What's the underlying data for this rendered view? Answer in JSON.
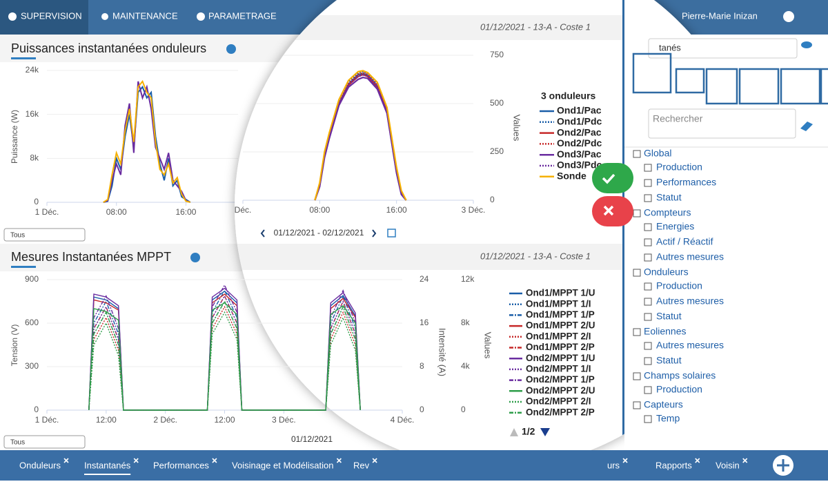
{
  "nav": {
    "supervision": "SUPERVISION",
    "maintenance": "MAINTENANCE",
    "parametrage": "PARAMETRAGE",
    "user": "Pierre-Marie Inizan"
  },
  "panel1": {
    "title": "Puissances instantanées onduleurs",
    "filter": "Tous"
  },
  "panel2": {
    "title": "Mesures Instantanées MPPT",
    "filter": "Tous"
  },
  "zoom": {
    "header1": "01/12/2021 - 13-A - Coste 1",
    "range1": "01/12/2021 - 02/12/2021",
    "header2": "01/12/2021 - 13-A - Coste 1",
    "range2": "01/12/2021",
    "pager": "1/2"
  },
  "chart_data": [
    {
      "type": "line",
      "y_label": "Puissance (W)",
      "x": [
        6.5,
        7,
        7.5,
        8,
        8.5,
        9,
        9.5,
        10,
        10.5,
        11,
        11.5,
        12,
        12.5,
        13,
        13.5,
        14,
        14.5,
        15,
        15.5,
        16,
        16.5
      ],
      "xlim": [
        0,
        22
      ],
      "xticks": [
        {
          "value": 0,
          "label": "1 Déc."
        },
        {
          "value": 8,
          "label": "08:00"
        },
        {
          "value": 16,
          "label": "16:00"
        }
      ],
      "ylim": [
        0,
        24000
      ],
      "yticks": [
        0,
        {
          "value": 8000,
          "label": "8k"
        },
        {
          "value": 16000,
          "label": "16k"
        },
        {
          "value": 24000,
          "label": "24k"
        }
      ],
      "grid": true,
      "series": [
        {
          "color": "#1a5ea8",
          "values": [
            0,
            200,
            3000,
            8000,
            6000,
            12000,
            16000,
            10000,
            20000,
            21000,
            19000,
            20000,
            12000,
            7000,
            4000,
            8000,
            3000,
            4000,
            1000,
            500,
            0
          ]
        },
        {
          "color": "#6a2ca0",
          "values": [
            0,
            300,
            4000,
            7000,
            5000,
            14000,
            18000,
            9000,
            22000,
            19000,
            21000,
            17000,
            10000,
            8000,
            6000,
            9000,
            4000,
            3000,
            2000,
            300,
            0
          ]
        },
        {
          "color": "#f5b000",
          "values": [
            0,
            500,
            5000,
            9000,
            7000,
            13000,
            17000,
            11000,
            21000,
            22000,
            20000,
            19000,
            11000,
            6000,
            5000,
            7000,
            3500,
            4500,
            1500,
            200,
            0
          ]
        }
      ]
    },
    {
      "type": "line",
      "y_label": "Values",
      "legend_title": "3 onduleurs",
      "x": [
        7.5,
        8,
        8.5,
        9,
        10,
        11,
        12,
        12.5,
        13,
        14,
        15,
        16,
        16.5,
        17
      ],
      "xlim": [
        0,
        24
      ],
      "xticks": [
        {
          "value": 0,
          "label": "Déc."
        },
        {
          "value": 8,
          "label": "08:00"
        },
        {
          "value": 16,
          "label": "16:00"
        },
        {
          "value": 24,
          "label": "3 Déc."
        }
      ],
      "ylim": [
        0,
        750
      ],
      "yticks": [
        0,
        250,
        500,
        750
      ],
      "grid": true,
      "series": [
        {
          "name": "Ond1/Pac",
          "color": "#1a5ea8",
          "dash": "solid",
          "values": [
            0,
            80,
            230,
            330,
            500,
            600,
            650,
            655,
            645,
            590,
            460,
            150,
            40,
            0
          ]
        },
        {
          "name": "Ond1/Pdc",
          "color": "#1a5ea8",
          "dash": "dot",
          "values": [
            0,
            85,
            240,
            340,
            510,
            610,
            660,
            665,
            655,
            600,
            470,
            160,
            45,
            0
          ]
        },
        {
          "name": "Ond2/Pac",
          "color": "#c62828",
          "dash": "solid",
          "values": [
            0,
            75,
            225,
            325,
            495,
            595,
            640,
            650,
            640,
            585,
            455,
            145,
            35,
            0
          ]
        },
        {
          "name": "Ond2/Pdc",
          "color": "#c62828",
          "dash": "dot",
          "values": [
            0,
            80,
            235,
            335,
            505,
            605,
            652,
            660,
            650,
            595,
            465,
            155,
            40,
            0
          ]
        },
        {
          "name": "Ond3/Pac",
          "color": "#6a2ca0",
          "dash": "solid",
          "values": [
            0,
            70,
            220,
            320,
            490,
            585,
            625,
            635,
            630,
            575,
            450,
            140,
            30,
            0
          ]
        },
        {
          "name": "Ond3/Pdc",
          "color": "#6a2ca0",
          "dash": "dot",
          "values": [
            0,
            78,
            232,
            330,
            500,
            598,
            640,
            648,
            642,
            588,
            462,
            150,
            38,
            0
          ]
        },
        {
          "name": "Sonde",
          "color": "#f5b000",
          "dash": "solid",
          "values": [
            0,
            90,
            250,
            350,
            520,
            620,
            665,
            670,
            660,
            610,
            480,
            170,
            50,
            0
          ]
        }
      ]
    },
    {
      "type": "line",
      "y_label": "Tension (V)",
      "y2_label": "Intensité (A)",
      "y3_label": "Values",
      "x": [
        8.5,
        9.5,
        12,
        14.5,
        15.5,
        32.5,
        33.5,
        36,
        38.5,
        39.5,
        56.5,
        57.5,
        60,
        62.5,
        63.5
      ],
      "xlim": [
        0,
        72
      ],
      "xticks": [
        {
          "value": 0,
          "label": "1 Déc."
        },
        {
          "value": 12,
          "label": "12:00"
        },
        {
          "value": 24,
          "label": "2 Déc."
        },
        {
          "value": 36,
          "label": "12:00"
        },
        {
          "value": 48,
          "label": "3 Déc."
        },
        {
          "value": 72,
          "label": "4 Déc."
        }
      ],
      "ylim": [
        0,
        900
      ],
      "yticks": [
        0,
        300,
        600,
        900
      ],
      "y2lim": [
        0,
        24
      ],
      "y2ticks": [
        0,
        8,
        16,
        24
      ],
      "y3lim": [
        0,
        12000
      ],
      "y3ticks": [
        0,
        {
          "value": 4000,
          "label": "4k"
        },
        {
          "value": 8000,
          "label": "8k"
        },
        {
          "value": 12000,
          "label": "12k"
        }
      ],
      "grid": true,
      "series": [
        {
          "name": "Ond1/MPPT 1/U",
          "color": "#1a5ea8",
          "dash": "solid",
          "axis": "y",
          "values": [
            0,
            780,
            760,
            700,
            0,
            0,
            760,
            820,
            740,
            0,
            0,
            720,
            790,
            650,
            0
          ]
        },
        {
          "name": "Ond1/MPPT 1/I",
          "color": "#1a5ea8",
          "dash": "dot",
          "axis": "y2",
          "values": [
            0,
            14,
            18,
            12,
            0,
            0,
            16,
            20,
            15,
            0,
            0,
            14,
            19,
            13,
            0
          ]
        },
        {
          "name": "Ond1/MPPT 1/P",
          "color": "#1a5ea8",
          "dash": "dashdot",
          "axis": "y3",
          "values": [
            0,
            8000,
            10000,
            7000,
            0,
            0,
            9000,
            11000,
            8500,
            0,
            0,
            8000,
            10500,
            7500,
            0
          ]
        },
        {
          "name": "Ond1/MPPT 2/U",
          "color": "#c62828",
          "dash": "solid",
          "axis": "y",
          "values": [
            0,
            760,
            740,
            690,
            0,
            0,
            740,
            800,
            720,
            0,
            0,
            700,
            770,
            640,
            0
          ]
        },
        {
          "name": "Ond1/MPPT 2/I",
          "color": "#c62828",
          "dash": "dot",
          "axis": "y2",
          "values": [
            0,
            13,
            17,
            11,
            0,
            0,
            15,
            19,
            14,
            0,
            0,
            13,
            18,
            12,
            0
          ]
        },
        {
          "name": "Ond1/MPPT 2/P",
          "color": "#c62828",
          "dash": "dashdot",
          "axis": "y3",
          "values": [
            0,
            7500,
            9500,
            6500,
            0,
            0,
            8500,
            10500,
            8000,
            0,
            0,
            7500,
            10000,
            7000,
            0
          ]
        },
        {
          "name": "Ond2/MPPT 1/U",
          "color": "#6a2ca0",
          "dash": "solid",
          "axis": "y",
          "values": [
            0,
            800,
            780,
            720,
            0,
            0,
            780,
            840,
            760,
            0,
            0,
            740,
            810,
            670,
            0
          ]
        },
        {
          "name": "Ond2/MPPT 1/I",
          "color": "#6a2ca0",
          "dash": "dot",
          "axis": "y2",
          "values": [
            0,
            15,
            19,
            13,
            0,
            0,
            17,
            21,
            16,
            0,
            0,
            15,
            20,
            14,
            0
          ]
        },
        {
          "name": "Ond2/MPPT 1/P",
          "color": "#6a2ca0",
          "dash": "dashdot",
          "axis": "y3",
          "values": [
            0,
            8500,
            10500,
            7500,
            0,
            0,
            9500,
            11500,
            9000,
            0,
            0,
            8500,
            11000,
            8000,
            0
          ]
        },
        {
          "name": "Ond2/MPPT 2/U",
          "color": "#2e9e4a",
          "dash": "solid",
          "axis": "y",
          "values": [
            0,
            700,
            680,
            620,
            0,
            0,
            690,
            740,
            660,
            0,
            0,
            660,
            720,
            600,
            0
          ]
        },
        {
          "name": "Ond2/MPPT 2/I",
          "color": "#2e9e4a",
          "dash": "dot",
          "axis": "y2",
          "values": [
            0,
            12,
            16,
            10,
            0,
            0,
            14,
            18,
            13,
            0,
            0,
            12,
            17,
            11,
            0
          ]
        },
        {
          "name": "Ond2/MPPT 2/P",
          "color": "#2e9e4a",
          "dash": "dashdot",
          "axis": "y3",
          "values": [
            0,
            7000,
            9000,
            6000,
            0,
            0,
            8000,
            10000,
            7500,
            0,
            0,
            7000,
            9500,
            6500,
            0
          ]
        }
      ]
    }
  ],
  "sidebar": {
    "search_top": "tanés",
    "search": "Rechercher",
    "tree": [
      {
        "label": "Global",
        "children": [
          "Production",
          "Performances",
          "Statut"
        ]
      },
      {
        "label": "Compteurs",
        "children": [
          "Energies",
          "Actif / Réactif",
          "Autres mesures"
        ]
      },
      {
        "label": "Onduleurs",
        "children": [
          "Production",
          "Autres mesures",
          "Statut"
        ]
      },
      {
        "label": "Eoliennes",
        "children": [
          "Autres mesures",
          "Statut"
        ]
      },
      {
        "label": "Champs solaires",
        "children": [
          "Production"
        ]
      },
      {
        "label": "Capteurs",
        "children": [
          "Temp"
        ]
      }
    ]
  },
  "tabs": [
    "Onduleurs",
    "Instantanés",
    "Performances",
    "Voisinage et Modélisation",
    "Rev",
    "urs",
    "Rapports",
    "Voisin"
  ]
}
